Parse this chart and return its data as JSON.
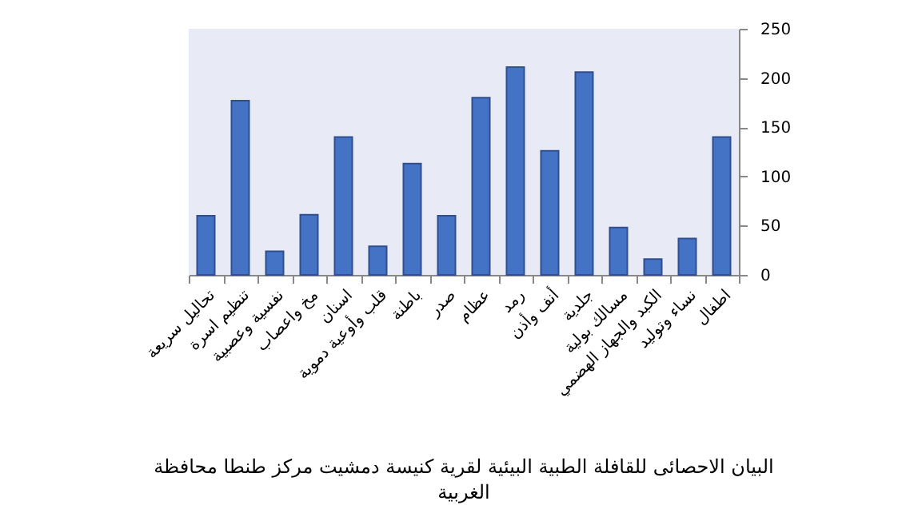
{
  "chart_data": {
    "type": "bar",
    "title": "البيان الاحصائى للقافلة الطبية البيئية لقرية كنيسة دمشيت مركز طنطا محافظة الغربية",
    "categories": [
      "تحاليل سريعة",
      "تنظيم اسرة",
      "نفسية وعصبية",
      "مخ واعصاب",
      "اسنان",
      "قلب وأوعية دموية",
      "باطنة",
      "صدر",
      "عظام",
      "رمد",
      "أنف وأذن",
      "جلدية",
      "مسالك بولية",
      "الكبد والجهاز الهضمي",
      "نساء وتوليد",
      "اطفال"
    ],
    "values": [
      60,
      177,
      24,
      61,
      140,
      29,
      113,
      60,
      180,
      211,
      126,
      206,
      48,
      16,
      37,
      140
    ],
    "color": "#4472c4",
    "ylim": [
      0,
      250
    ],
    "yticks": [
      0,
      50,
      100,
      150,
      200,
      250
    ],
    "grid": false
  }
}
